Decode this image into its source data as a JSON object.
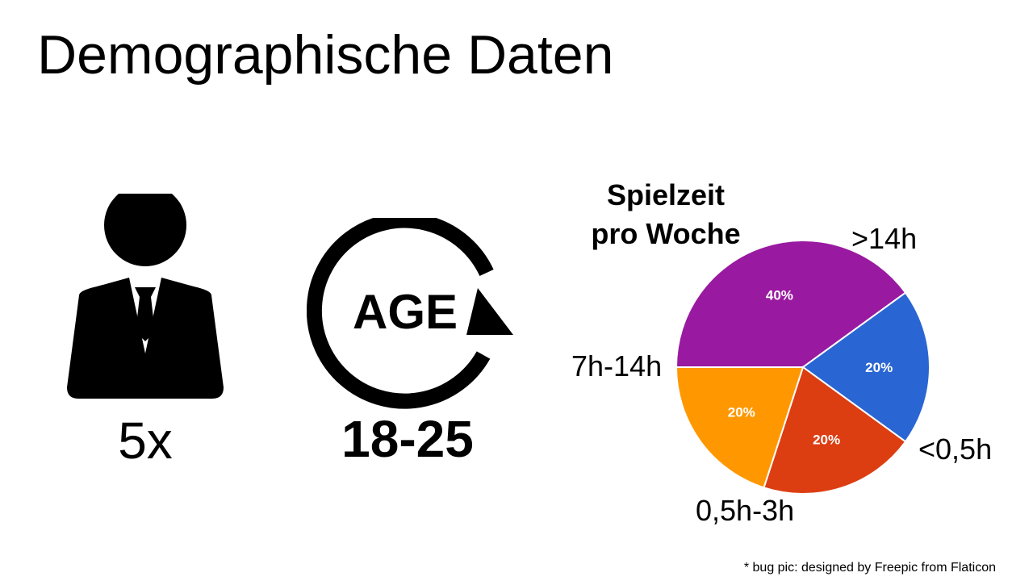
{
  "slide": {
    "title": "Demographische Daten",
    "footnote": "* bug pic: designed by Freepic from Flaticon"
  },
  "participants": {
    "icon": "person-in-suit-icon",
    "count_label": "5x"
  },
  "age": {
    "icon": "age-cycle-icon",
    "icon_text": "AGE",
    "range_label": "18-25"
  },
  "chart_data": {
    "type": "pie",
    "title": "Spielzeit pro Woche",
    "title_lines": [
      "Spielzeit",
      "pro Woche"
    ],
    "unit": "%",
    "slices": [
      {
        "label": ">14h",
        "value": 40,
        "display": "40%",
        "color": "#991aa0"
      },
      {
        "label": "<0,5h",
        "value": 20,
        "display": "20%",
        "color": "#2966d3"
      },
      {
        "label": "0,5h-3h",
        "value": 20,
        "display": "20%",
        "color": "#dc3e12"
      },
      {
        "label": "7h-14h",
        "value": 20,
        "display": "20%",
        "color": "#ff9800"
      }
    ]
  }
}
